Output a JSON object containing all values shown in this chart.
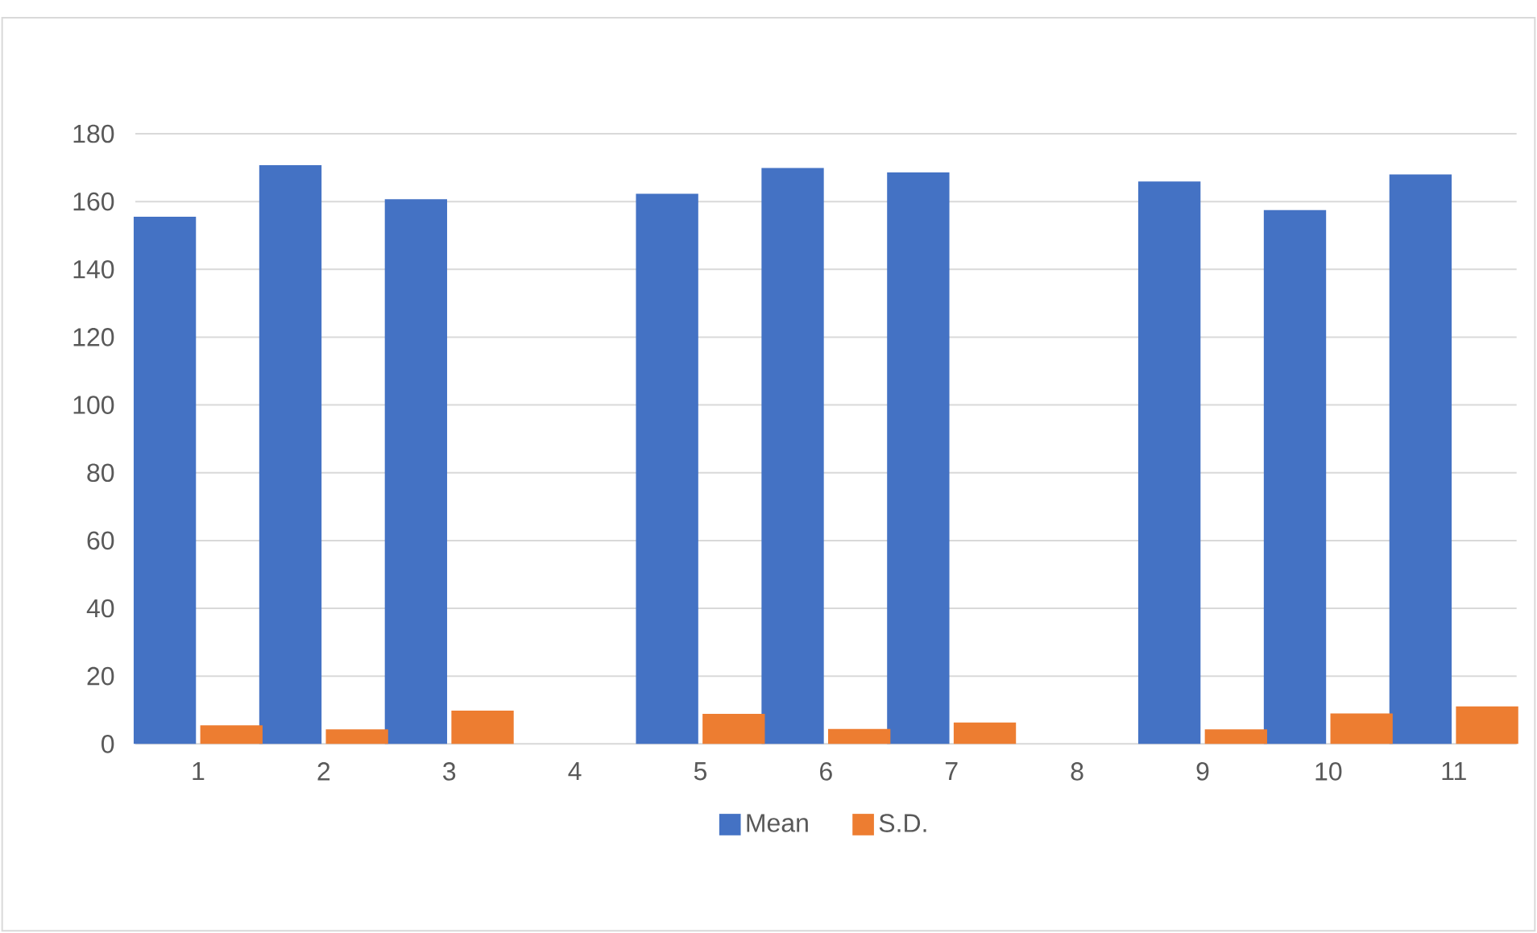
{
  "chart_data": {
    "type": "bar",
    "categories": [
      "1",
      "2",
      "3",
      "4",
      "5",
      "6",
      "7",
      "8",
      "9",
      "10",
      "11"
    ],
    "series": [
      {
        "name": "Mean",
        "color": "#4472c4",
        "values": [
          155.5,
          170.7,
          160.7,
          null,
          162.3,
          169.9,
          168.6,
          null,
          165.9,
          157.5,
          168.0
        ]
      },
      {
        "name": "S.D.",
        "color": "#ed7d31",
        "values": [
          5.5,
          4.3,
          9.8,
          null,
          8.9,
          4.4,
          6.3,
          null,
          4.3,
          9.0,
          11.1
        ]
      }
    ],
    "ylim": [
      0,
      180
    ],
    "yticks": [
      0,
      20,
      40,
      60,
      80,
      100,
      120,
      140,
      160,
      180
    ],
    "grid": "y",
    "legend": "bottom"
  }
}
